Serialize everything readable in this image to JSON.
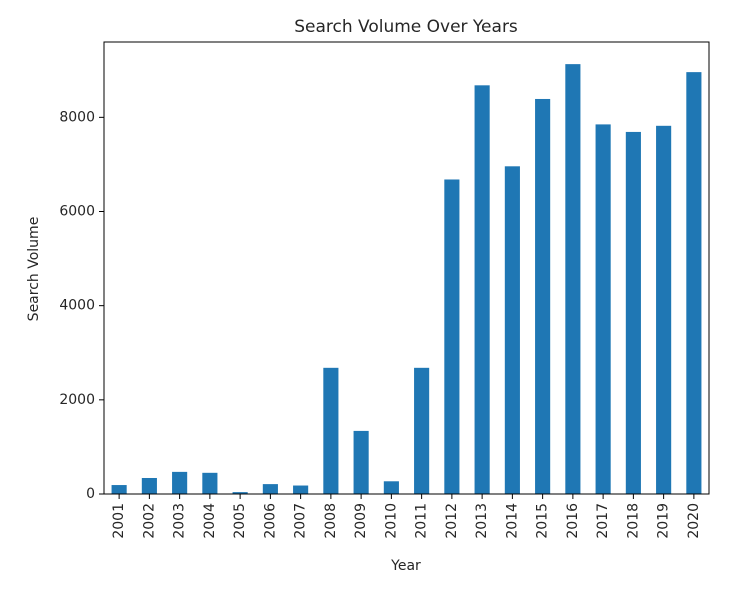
{
  "chart_data": {
    "type": "bar",
    "title": "Search Volume Over Years",
    "xlabel": "Year",
    "ylabel": "Search Volume",
    "categories": [
      "2001",
      "2002",
      "2003",
      "2004",
      "2005",
      "2006",
      "2007",
      "2008",
      "2009",
      "2010",
      "2011",
      "2012",
      "2013",
      "2014",
      "2015",
      "2016",
      "2017",
      "2018",
      "2019",
      "2020"
    ],
    "values": [
      190,
      340,
      470,
      450,
      40,
      210,
      180,
      2680,
      1340,
      270,
      2680,
      6680,
      8680,
      6960,
      8390,
      9130,
      7850,
      7690,
      7820,
      8960
    ],
    "ylim": [
      0,
      9600
    ],
    "yticks": [
      0,
      2000,
      4000,
      6000,
      8000
    ],
    "bar_color": "#1f77b4",
    "grid": false,
    "legend": "none"
  }
}
